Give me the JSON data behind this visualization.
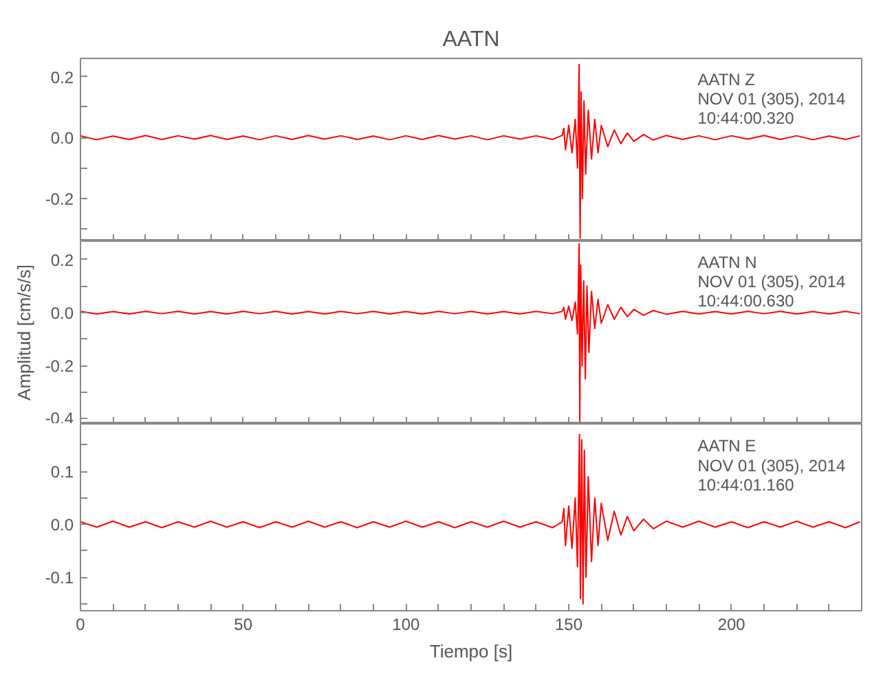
{
  "chart_data": [
    {
      "type": "line",
      "title": "AATN",
      "tick_labels": "y",
      "grid": false,
      "marker": "none",
      "line_style": "solid",
      "xlim": [
        0,
        240
      ],
      "xticks": [
        0,
        {
          "value": 10,
          "label": null
        },
        {
          "value": 20,
          "label": null
        },
        {
          "value": 30,
          "label": null
        },
        {
          "value": 40,
          "label": null
        },
        50,
        {
          "value": 60,
          "label": null
        },
        {
          "value": 70,
          "label": null
        },
        {
          "value": 80,
          "label": null
        },
        {
          "value": 90,
          "label": null
        },
        100,
        {
          "value": 110,
          "label": null
        },
        {
          "value": 120,
          "label": null
        },
        {
          "value": 130,
          "label": null
        },
        {
          "value": 140,
          "label": null
        },
        150,
        {
          "value": 160,
          "label": null
        },
        {
          "value": 170,
          "label": null
        },
        {
          "value": 180,
          "label": null
        },
        {
          "value": 190,
          "label": null
        },
        200,
        {
          "value": 210,
          "label": null
        },
        {
          "value": 220,
          "label": null
        },
        {
          "value": 230,
          "label": null
        }
      ],
      "ylim": [
        -0.34,
        0.26
      ],
      "yticks": [
        {
          "value": -0.3,
          "label": null
        },
        -0.2,
        {
          "value": -0.1,
          "label": null
        },
        {
          "value": 0,
          "label": "0.0"
        },
        {
          "value": 0.1,
          "label": null
        },
        0.2
      ],
      "annotations": [
        "AATN Z",
        "NOV 01 (305), 2014",
        "10:44:00.320"
      ],
      "series": [
        {
          "color": "#ff0000",
          "x": [
            0,
            5,
            10,
            15,
            20,
            25,
            30,
            35,
            40,
            45,
            50,
            55,
            60,
            65,
            70,
            75,
            80,
            85,
            90,
            95,
            100,
            105,
            110,
            115,
            120,
            125,
            130,
            135,
            140,
            145,
            148,
            148.5,
            149,
            150,
            151,
            152,
            152.7,
            153.2,
            153.5,
            153.8,
            154.2,
            154.7,
            155.2,
            156,
            157,
            158,
            159,
            160,
            162,
            164,
            166,
            168,
            170,
            173,
            176,
            180,
            185,
            190,
            195,
            200,
            205,
            210,
            215,
            220,
            225,
            230,
            235,
            239.5
          ],
          "values": [
            0.006,
            -0.007,
            0.005,
            -0.006,
            0.007,
            -0.006,
            0.006,
            -0.005,
            0.007,
            -0.006,
            0.005,
            -0.007,
            0.006,
            -0.006,
            0.007,
            -0.005,
            0.006,
            -0.006,
            0.005,
            -0.007,
            0.006,
            -0.006,
            0.007,
            -0.005,
            0.006,
            -0.007,
            0.006,
            -0.005,
            0.006,
            -0.006,
            0.007,
            0.03,
            -0.04,
            0.04,
            -0.05,
            0.06,
            -0.1,
            0.24,
            -0.33,
            0.15,
            -0.2,
            0.12,
            -0.12,
            0.09,
            -0.07,
            0.06,
            -0.05,
            0.04,
            -0.03,
            0.025,
            -0.02,
            0.015,
            -0.012,
            0.01,
            -0.008,
            0.007,
            -0.006,
            0.006,
            -0.007,
            0.006,
            -0.005,
            0.007,
            -0.006,
            0.006,
            -0.007,
            0.005,
            -0.006,
            0.006
          ]
        }
      ]
    },
    {
      "type": "line",
      "ylabel": "Amplitud [cm/s/s]",
      "tick_labels": "y",
      "grid": false,
      "marker": "none",
      "line_style": "solid",
      "xlim": [
        0,
        240
      ],
      "xticks": [
        0,
        {
          "value": 10,
          "label": null
        },
        {
          "value": 20,
          "label": null
        },
        {
          "value": 30,
          "label": null
        },
        {
          "value": 40,
          "label": null
        },
        50,
        {
          "value": 60,
          "label": null
        },
        {
          "value": 70,
          "label": null
        },
        {
          "value": 80,
          "label": null
        },
        {
          "value": 90,
          "label": null
        },
        100,
        {
          "value": 110,
          "label": null
        },
        {
          "value": 120,
          "label": null
        },
        {
          "value": 130,
          "label": null
        },
        {
          "value": 140,
          "label": null
        },
        150,
        {
          "value": 160,
          "label": null
        },
        {
          "value": 170,
          "label": null
        },
        {
          "value": 180,
          "label": null
        },
        {
          "value": 190,
          "label": null
        },
        200,
        {
          "value": 210,
          "label": null
        },
        {
          "value": 220,
          "label": null
        },
        {
          "value": 230,
          "label": null
        }
      ],
      "ylim": [
        -0.42,
        0.27
      ],
      "yticks": [
        -0.4,
        {
          "value": -0.3,
          "label": null
        },
        -0.2,
        {
          "value": -0.1,
          "label": null
        },
        {
          "value": 0,
          "label": "0.0"
        },
        {
          "value": 0.1,
          "label": null
        },
        0.2
      ],
      "annotations": [
        "AATN N",
        "NOV 01 (305), 2014",
        "10:44:00.630"
      ],
      "series": [
        {
          "color": "#ff0000",
          "x": [
            0,
            5,
            10,
            15,
            20,
            25,
            30,
            35,
            40,
            45,
            50,
            55,
            60,
            65,
            70,
            75,
            80,
            85,
            90,
            95,
            100,
            105,
            110,
            115,
            120,
            125,
            130,
            135,
            140,
            145,
            148,
            148.5,
            149,
            150,
            151,
            152,
            152.7,
            153.2,
            153.4,
            153.7,
            154.1,
            154.6,
            155.1,
            155.6,
            156.2,
            157,
            158,
            159,
            160,
            162,
            164,
            166,
            168,
            170,
            173,
            176,
            180,
            185,
            190,
            195,
            200,
            205,
            210,
            215,
            220,
            225,
            230,
            235,
            239.5
          ],
          "values": [
            0.005,
            -0.005,
            0.004,
            -0.005,
            0.005,
            -0.004,
            0.005,
            -0.005,
            0.004,
            -0.005,
            0.005,
            -0.004,
            0.005,
            -0.005,
            0.004,
            -0.005,
            0.005,
            -0.004,
            0.005,
            -0.005,
            0.004,
            -0.005,
            0.005,
            -0.004,
            0.005,
            -0.005,
            0.004,
            -0.005,
            0.005,
            -0.004,
            0.005,
            0.02,
            -0.025,
            0.025,
            -0.03,
            0.04,
            -0.08,
            0.26,
            -0.41,
            0.18,
            -0.2,
            0.12,
            -0.25,
            0.1,
            -0.15,
            0.08,
            -0.06,
            0.05,
            -0.04,
            0.03,
            -0.025,
            0.02,
            -0.015,
            0.012,
            -0.01,
            0.008,
            -0.006,
            0.005,
            -0.005,
            0.004,
            -0.005,
            0.005,
            -0.004,
            0.005,
            -0.005,
            0.004,
            -0.005,
            0.005,
            -0.004
          ]
        }
      ]
    },
    {
      "type": "line",
      "xlabel": "Tiempo [s]",
      "grid": false,
      "marker": "none",
      "line_style": "solid",
      "xlim": [
        0,
        240
      ],
      "xticks": [
        0,
        {
          "value": 10,
          "label": null
        },
        {
          "value": 20,
          "label": null
        },
        {
          "value": 30,
          "label": null
        },
        {
          "value": 40,
          "label": null
        },
        50,
        {
          "value": 60,
          "label": null
        },
        {
          "value": 70,
          "label": null
        },
        {
          "value": 80,
          "label": null
        },
        {
          "value": 90,
          "label": null
        },
        100,
        {
          "value": 110,
          "label": null
        },
        {
          "value": 120,
          "label": null
        },
        {
          "value": 130,
          "label": null
        },
        {
          "value": 140,
          "label": null
        },
        150,
        {
          "value": 160,
          "label": null
        },
        {
          "value": 170,
          "label": null
        },
        {
          "value": 180,
          "label": null
        },
        {
          "value": 190,
          "label": null
        },
        200,
        {
          "value": 210,
          "label": null
        },
        {
          "value": 220,
          "label": null
        },
        {
          "value": 230,
          "label": null
        }
      ],
      "ylim": [
        -0.163,
        0.19
      ],
      "yticks": [
        {
          "value": -0.15,
          "label": null
        },
        -0.1,
        {
          "value": -0.05,
          "label": null
        },
        {
          "value": 0,
          "label": "0.0"
        },
        {
          "value": 0.05,
          "label": null
        },
        0.1,
        {
          "value": 0.15,
          "label": null
        }
      ],
      "annotations": [
        "AATN E",
        "NOV 01 (305), 2014",
        "10:44:01.160"
      ],
      "series": [
        {
          "color": "#ff0000",
          "x": [
            0,
            5,
            10,
            15,
            20,
            25,
            30,
            35,
            40,
            45,
            50,
            55,
            60,
            65,
            70,
            75,
            80,
            85,
            90,
            95,
            100,
            105,
            110,
            115,
            120,
            125,
            130,
            135,
            140,
            145,
            148,
            148.5,
            149,
            150,
            151,
            152,
            152.7,
            153.3,
            153.6,
            154,
            154.4,
            154.8,
            155.3,
            156,
            157,
            158,
            159,
            160,
            162,
            164,
            166,
            168,
            170,
            173,
            176,
            180,
            185,
            190,
            195,
            200,
            205,
            210,
            215,
            220,
            225,
            230,
            235,
            239.5
          ],
          "values": [
            0.005,
            -0.005,
            0.006,
            -0.005,
            0.005,
            -0.006,
            0.005,
            -0.005,
            0.006,
            -0.005,
            0.005,
            -0.006,
            0.005,
            -0.005,
            0.006,
            -0.005,
            0.005,
            -0.006,
            0.005,
            -0.005,
            0.006,
            -0.005,
            0.005,
            -0.006,
            0.005,
            -0.005,
            0.006,
            -0.005,
            0.005,
            -0.006,
            0.005,
            0.03,
            -0.04,
            0.035,
            -0.045,
            0.05,
            -0.08,
            0.17,
            -0.14,
            0.16,
            -0.15,
            0.14,
            -0.1,
            0.09,
            -0.07,
            0.05,
            -0.04,
            0.04,
            -0.03,
            0.025,
            -0.02,
            0.015,
            -0.012,
            0.01,
            -0.008,
            0.006,
            -0.005,
            0.006,
            -0.005,
            0.005,
            -0.006,
            0.005,
            -0.005,
            0.006,
            -0.005,
            0.005,
            -0.006,
            0.005
          ]
        }
      ]
    }
  ]
}
